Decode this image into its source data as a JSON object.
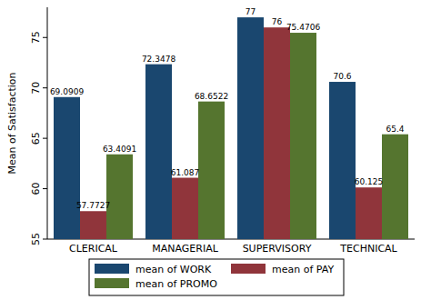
{
  "chart_data": {
    "type": "bar",
    "y_label": "Mean of Satisfaction",
    "categories": [
      "CLERICAL",
      "MANAGERIAL",
      "SUPERVISORY",
      "TECHNICAL"
    ],
    "series": [
      {
        "name": "mean of WORK",
        "color": "#1a476f",
        "values": [
          69.0909,
          72.3478,
          77,
          70.6
        ]
      },
      {
        "name": "mean of PAY",
        "color": "#90353b",
        "values": [
          57.7727,
          61.087,
          76,
          60.125
        ]
      },
      {
        "name": "mean of PROMO",
        "color": "#55752f",
        "values": [
          63.4091,
          68.6522,
          75.4706,
          65.4
        ]
      }
    ],
    "ylim": [
      55,
      78
    ],
    "yticks": [
      55,
      60,
      65,
      70,
      75
    ],
    "grid": false,
    "data_labels": true,
    "legend": "bottom"
  }
}
